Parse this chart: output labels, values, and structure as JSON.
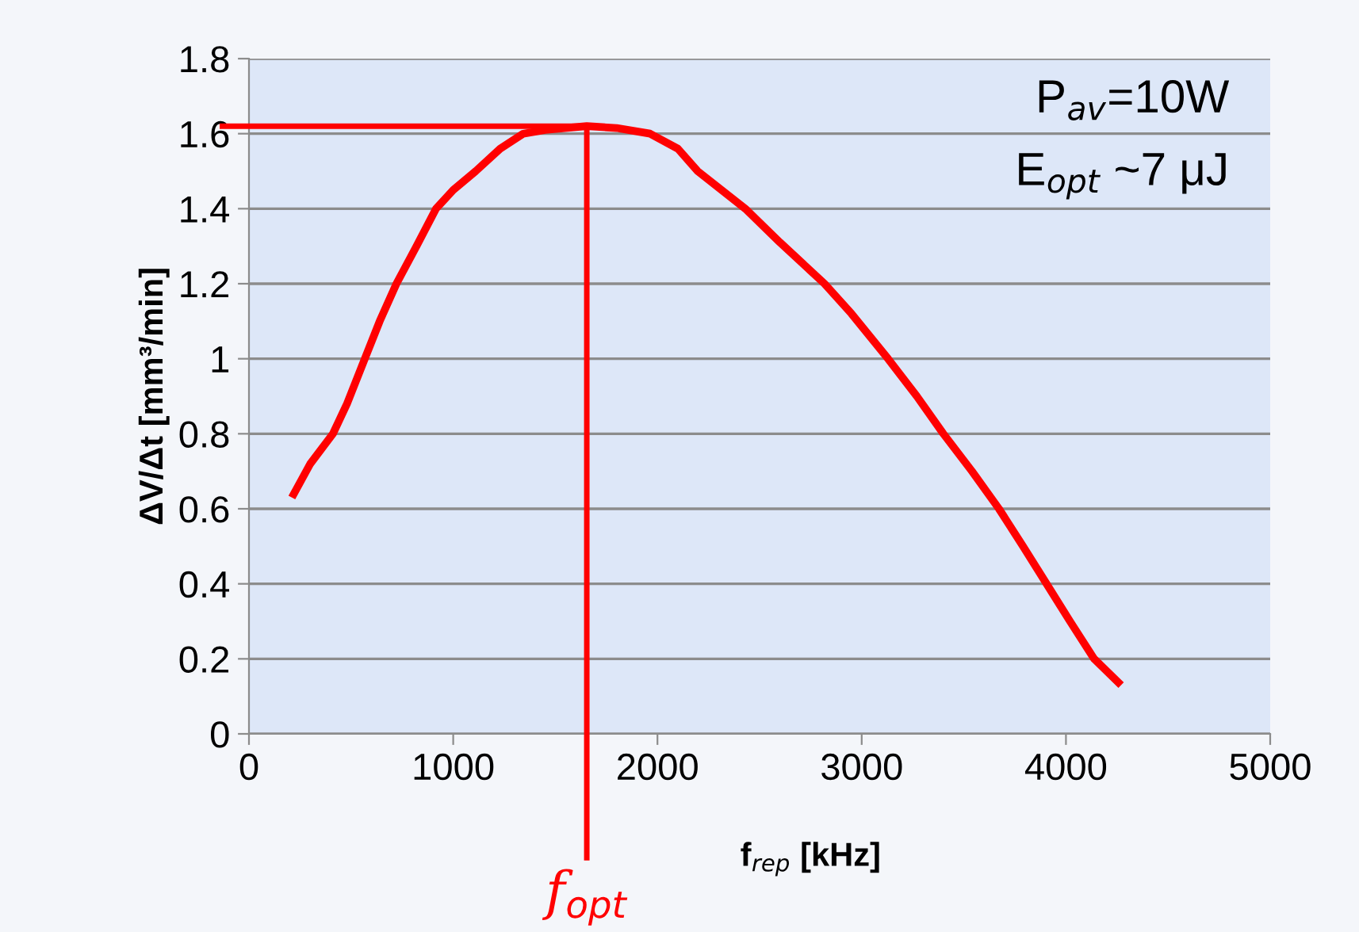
{
  "chart_data": {
    "type": "line",
    "xlabel": "f$_{rep}$ [kHz]",
    "ylabel": "ΔV/Δt [mm³/min]",
    "x": [
      210,
      300,
      411,
      480,
      567,
      640,
      722,
      820,
      916,
      1000,
      1110,
      1230,
      1343,
      1450,
      1654,
      1800,
      1964,
      2100,
      2197,
      2430,
      2600,
      2818,
      2950,
      3129,
      3270,
      3400,
      3540,
      3672,
      3790,
      3905,
      4020,
      4138,
      4270
    ],
    "series": [
      {
        "color": "#ff0000",
        "values": [
          0.63,
          0.72,
          0.8,
          0.88,
          1.0,
          1.1,
          1.2,
          1.3,
          1.4,
          1.45,
          1.5,
          1.56,
          1.6,
          1.61,
          1.62,
          1.615,
          1.6,
          1.56,
          1.5,
          1.4,
          1.31,
          1.2,
          1.12,
          1.0,
          0.9,
          0.8,
          0.7,
          0.6,
          0.5,
          0.4,
          0.3,
          0.2,
          0.13
        ]
      }
    ],
    "xlim": [
      0,
      5000
    ],
    "xticks": [
      0,
      1000,
      2000,
      3000,
      4000,
      5000
    ],
    "ylim": [
      0,
      1.8
    ],
    "yticks": [
      0,
      0.2,
      0.4,
      0.6,
      0.8,
      1,
      1.2,
      1.4,
      1.6,
      1.8
    ],
    "ref_lines": [
      {
        "axis": "y",
        "value": 1.62,
        "color": "#ff0000"
      },
      {
        "axis": "x",
        "value": 1654,
        "label": "f$_{opt}$",
        "color": "#ff0000"
      }
    ],
    "annotations": [
      "P$_{av}$=10W",
      "E$_{opt}$ ~7 μJ"
    ],
    "grid": "y",
    "marker": "none",
    "line_style": "solid"
  }
}
